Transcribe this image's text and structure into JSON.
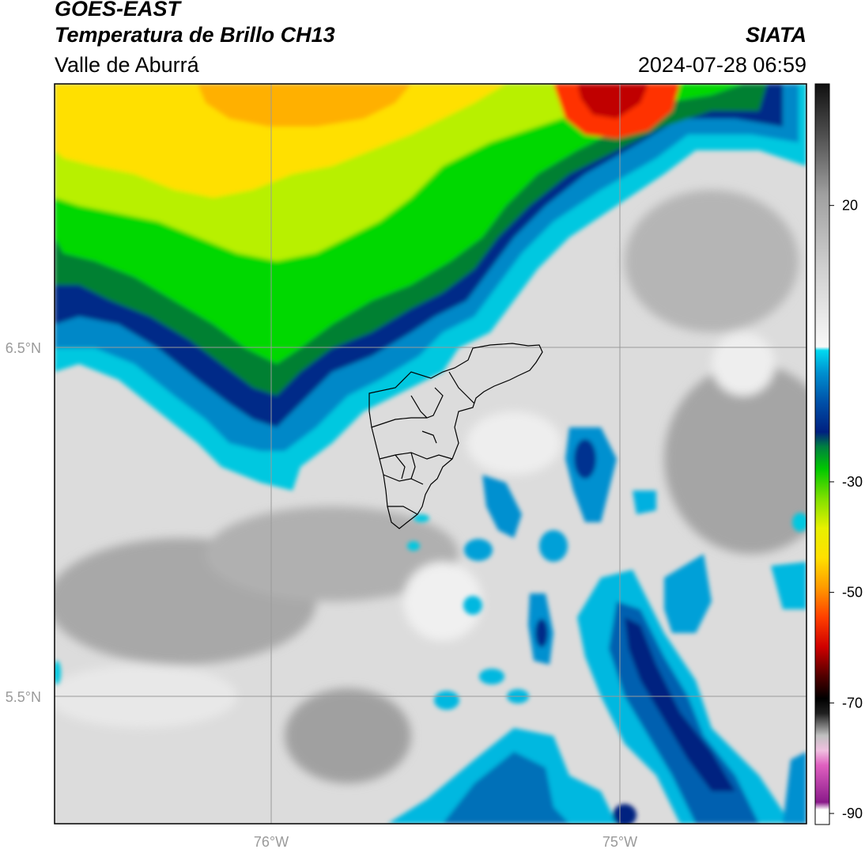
{
  "header": {
    "satellite": "GOES-EAST",
    "product": "Temperatura de Brillo CH13",
    "region": "Valle de Aburrá",
    "source": "SIATA",
    "datetime": "2024-07-28 06:59"
  },
  "map": {
    "lon_ticks": [
      "76°W",
      "75°W"
    ],
    "lat_ticks": [
      "6.5°N",
      "5.5°N"
    ],
    "gridlines": true,
    "overlay": "Valle de Aburrá municipal boundaries",
    "colors": {
      "warm_surface": "#dcdcdc",
      "cloud_cyan": "#00c8e0",
      "cloud_blue": "#0060b0",
      "cloud_darkblue": "#002080",
      "cloud_green": "#00d000",
      "cloud_yellow": "#f8e000",
      "cloud_orange": "#f89000",
      "cloud_red": "#d00000"
    }
  },
  "colorbar": {
    "ticks": [
      "20",
      "-30",
      "-50",
      "-70",
      "-90"
    ],
    "tick_values": [
      20,
      -30,
      -50,
      -70,
      -90
    ],
    "range": [
      -92,
      42
    ],
    "unit_hint": "Brightness temperature (°C)"
  }
}
